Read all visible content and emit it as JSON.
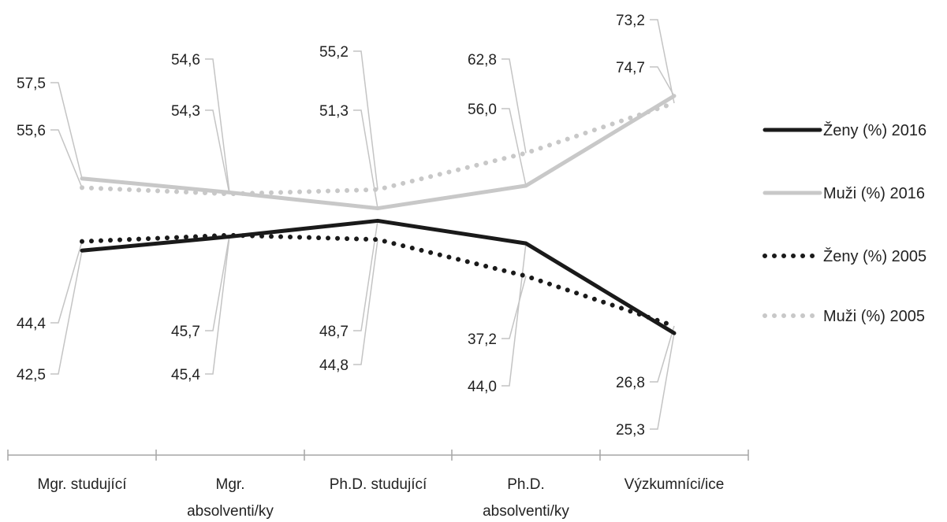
{
  "chart_data": {
    "type": "line",
    "categories": [
      {
        "lines": [
          "Mgr. studující"
        ]
      },
      {
        "lines": [
          "Mgr.",
          "absolventi/ky"
        ]
      },
      {
        "lines": [
          "Ph.D. studující"
        ]
      },
      {
        "lines": [
          "Ph.D.",
          "absolventi/ky"
        ]
      },
      {
        "lines": [
          "Výzkumníci/ice"
        ]
      }
    ],
    "series": [
      {
        "name": "Ženy (%) 2016",
        "values": [
          42.5,
          45.4,
          48.7,
          44.0,
          25.3
        ],
        "labels": [
          "42,5",
          "45,4",
          "48,7",
          "44,0",
          "25,3"
        ],
        "color": "#1a1a1a",
        "style": "solid"
      },
      {
        "name": "Muži (%) 2016",
        "values": [
          57.5,
          54.6,
          51.3,
          56.0,
          74.7
        ],
        "labels": [
          "57,5",
          "54,6",
          "51,3",
          "56,0",
          "74,7"
        ],
        "color": "#c8c8c8",
        "style": "solid"
      },
      {
        "name": "Ženy (%) 2005",
        "values": [
          44.4,
          45.7,
          44.8,
          37.2,
          26.8
        ],
        "labels": [
          "44,4",
          "45,7",
          "44,8",
          "37,2",
          "26,8"
        ],
        "color": "#1a1a1a",
        "style": "dotted"
      },
      {
        "name": "Muži (%) 2005",
        "values": [
          55.6,
          54.3,
          55.2,
          62.8,
          73.2
        ],
        "labels": [
          "55,6",
          "54,3",
          "55,2",
          "62,8",
          "73,2"
        ],
        "color": "#c8c8c8",
        "style": "dotted"
      }
    ],
    "legend_position": "right",
    "gridlines": false
  }
}
